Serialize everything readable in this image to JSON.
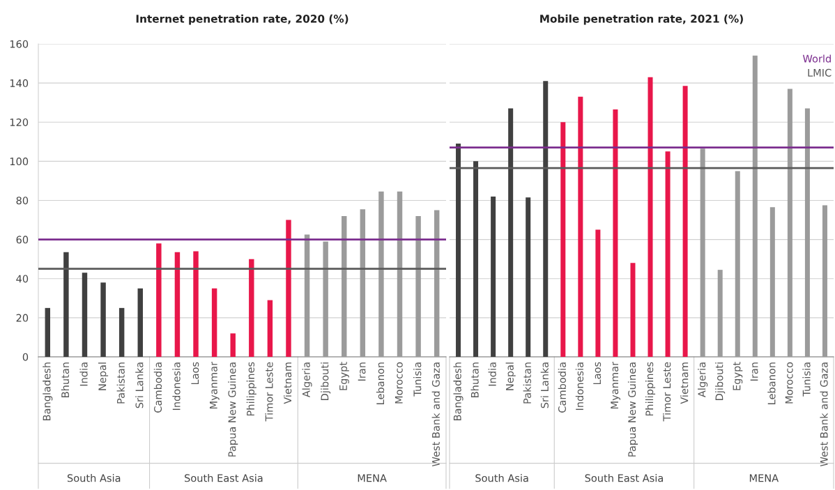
{
  "chart_data": [
    {
      "type": "bar",
      "title": "Internet penetration rate, 2020 (%)",
      "categories": [
        "Bangladesh",
        "Bhutan",
        "India",
        "Nepal",
        "Pakistan",
        "Sri Lanka",
        "Cambodia",
        "Indonesia",
        "Laos",
        "Myanmar",
        "Papua New Guinea",
        "Philippines",
        "Timor Leste",
        "Vietnam",
        "Algeria",
        "Djibouti",
        "Egypt",
        "Iran",
        "Lebanon",
        "Morocco",
        "Tunisia",
        "West Bank and Gaza"
      ],
      "values": [
        25,
        53.5,
        43,
        38,
        25,
        35,
        58,
        53.5,
        54,
        35,
        12,
        50,
        29,
        70,
        62.5,
        59,
        72,
        75.5,
        84.5,
        84.5,
        72,
        75
      ],
      "colors": [
        "#404040",
        "#404040",
        "#404040",
        "#404040",
        "#404040",
        "#404040",
        "#e8174a",
        "#e8174a",
        "#e8174a",
        "#e8174a",
        "#e8174a",
        "#e8174a",
        "#e8174a",
        "#e8174a",
        "#9b9b9b",
        "#9b9b9b",
        "#9b9b9b",
        "#9b9b9b",
        "#9b9b9b",
        "#9b9b9b",
        "#9b9b9b",
        "#9b9b9b"
      ],
      "annotations": [
        "South Asia",
        "South East Asia",
        "MENA"
      ],
      "ylim": [
        0,
        160
      ],
      "yticks": [
        0,
        20,
        40,
        60,
        80,
        100,
        120,
        140,
        160
      ],
      "grid": "y",
      "ref_lines": [
        {
          "axis": "y",
          "value": 60,
          "color": "#7b2d8e"
        },
        {
          "axis": "y",
          "value": 45,
          "color": "#5a5a5a"
        }
      ]
    },
    {
      "type": "bar",
      "title": "Mobile penetration rate, 2021 (%)",
      "categories": [
        "Bangladesh",
        "Bhutan",
        "India",
        "Nepal",
        "Pakistan",
        "Sri Lanka",
        "Cambodia",
        "Indonesia",
        "Laos",
        "Myanmar",
        "Papua New Guinea",
        "Philippines",
        "Timor Leste",
        "Vietnam",
        "Algeria",
        "Djibouti",
        "Egypt",
        "Iran",
        "Lebanon",
        "Morocco",
        "Tunisia",
        "West Bank and Gaza"
      ],
      "values": [
        109,
        100,
        82,
        127,
        81.5,
        141,
        120,
        133,
        65,
        126.5,
        48,
        143,
        105,
        138.5,
        106.5,
        44.5,
        95,
        154,
        76.5,
        137,
        127,
        77.5
      ],
      "colors": [
        "#404040",
        "#404040",
        "#404040",
        "#404040",
        "#404040",
        "#404040",
        "#e8174a",
        "#e8174a",
        "#e8174a",
        "#e8174a",
        "#e8174a",
        "#e8174a",
        "#e8174a",
        "#e8174a",
        "#9b9b9b",
        "#9b9b9b",
        "#9b9b9b",
        "#9b9b9b",
        "#9b9b9b",
        "#9b9b9b",
        "#9b9b9b",
        "#9b9b9b"
      ],
      "annotations": [
        "South Asia",
        "South East Asia",
        "MENA"
      ],
      "ylim": [
        0,
        160
      ],
      "yticks": [
        0,
        20,
        40,
        60,
        80,
        100,
        120,
        140,
        160
      ],
      "grid": "y",
      "tick_labels": "x",
      "ref_lines": [
        {
          "axis": "y",
          "value": 107,
          "label": "World",
          "color": "#7b2d8e"
        },
        {
          "axis": "y",
          "value": 96.5,
          "label": "LMIC",
          "color": "#5a5a5a"
        }
      ]
    }
  ]
}
